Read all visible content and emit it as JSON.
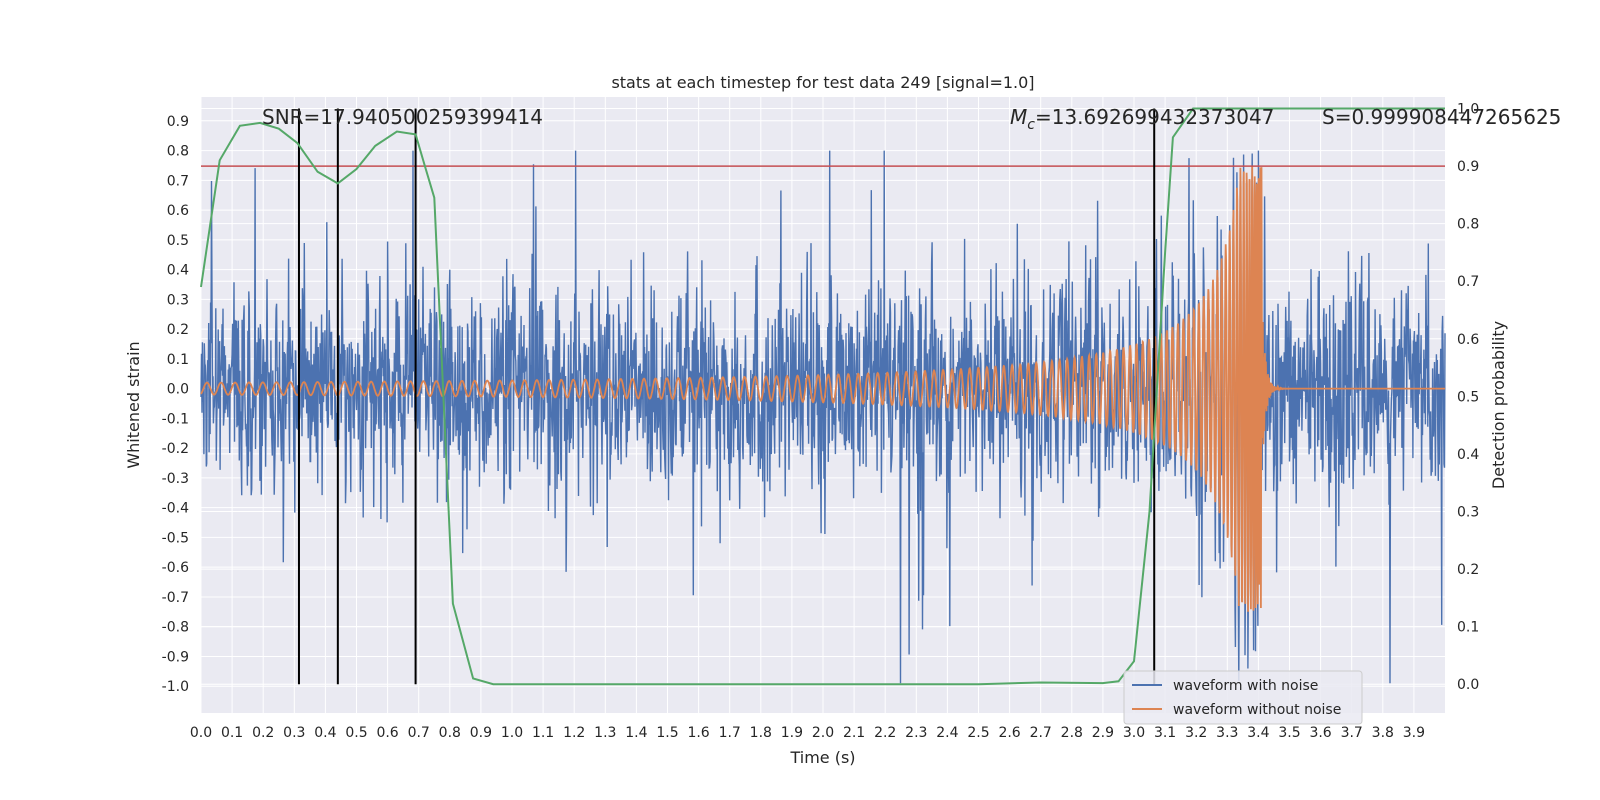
{
  "chart_data": {
    "type": "line",
    "title": "stats at each timestep for test data 249 [signal=1.0]",
    "xlabel": "Time (s)",
    "ylabel_left": "Whitened strain",
    "ylabel_right": "Detection probability",
    "xlim": [
      0.0,
      4.0
    ],
    "ylim_left": [
      -1.09,
      0.98
    ],
    "ylim_right": [
      -0.05,
      1.02
    ],
    "x_ticks": [
      "0.0",
      "0.1",
      "0.2",
      "0.3",
      "0.4",
      "0.5",
      "0.6",
      "0.7",
      "0.8",
      "0.9",
      "1.0",
      "1.1",
      "1.2",
      "1.3",
      "1.4",
      "1.5",
      "1.6",
      "1.7",
      "1.8",
      "1.9",
      "2.0",
      "2.1",
      "2.2",
      "2.3",
      "2.4",
      "2.5",
      "2.6",
      "2.7",
      "2.8",
      "2.9",
      "3.0",
      "3.1",
      "3.2",
      "3.3",
      "3.4",
      "3.5",
      "3.6",
      "3.7",
      "3.8",
      "3.9"
    ],
    "y_ticks_left": [
      "0.9",
      "0.8",
      "0.7",
      "0.6",
      "0.5",
      "0.4",
      "0.3",
      "0.2",
      "0.1",
      "0.0",
      "-0.1",
      "-0.2",
      "-0.3",
      "-0.4",
      "-0.5",
      "-0.6",
      "-0.7",
      "-0.8",
      "-0.9",
      "-1.0"
    ],
    "y_ticks_right": [
      "1.0",
      "0.9",
      "0.8",
      "0.7",
      "0.6",
      "0.5",
      "0.4",
      "0.3",
      "0.2",
      "0.1",
      "0.0"
    ],
    "annotations": {
      "snr_label": "SNR=17.940500259399414",
      "mc_symbol": "M",
      "mc_sub": "c",
      "mc_value": "=13.692699432373047",
      "s_label": "S=0.999908447265625"
    },
    "threshold": {
      "axis": "right",
      "value": 0.9,
      "color": "#c44e52"
    },
    "vertical_markers": [
      0.315,
      0.44,
      0.69,
      3.065
    ],
    "series": [
      {
        "name": "waveform with noise",
        "color": "#4c72b0",
        "axis": "left",
        "description": "whitened noisy strain, approx amplitude 0.25 with peaks to ~0.78 / -0.95"
      },
      {
        "name": "waveform without noise",
        "color": "#dd8452",
        "axis": "left",
        "chirp_start_amplitude": 0.02,
        "merger_time": 3.41,
        "merger_peak": 0.75
      },
      {
        "name": "detection probability",
        "color": "#55a868",
        "axis": "right",
        "x": [
          0.0,
          0.06,
          0.125,
          0.19,
          0.25,
          0.31,
          0.375,
          0.44,
          0.5,
          0.56,
          0.63,
          0.69,
          0.72,
          0.75,
          0.81,
          0.875,
          0.94,
          1.0,
          1.5,
          2.0,
          2.5,
          2.7,
          2.9,
          2.95,
          3.0,
          3.05,
          3.1,
          3.125,
          3.19,
          3.25,
          3.5,
          3.75,
          4.0
        ],
        "y": [
          0.69,
          0.91,
          0.97,
          0.975,
          0.965,
          0.94,
          0.89,
          0.87,
          0.895,
          0.935,
          0.96,
          0.955,
          0.9,
          0.845,
          0.14,
          0.01,
          0.0,
          0.0,
          0.0,
          0.0,
          0.0,
          0.003,
          0.002,
          0.005,
          0.04,
          0.3,
          0.75,
          0.95,
          1.0,
          1.0,
          1.0,
          1.0,
          1.0
        ]
      }
    ],
    "legend": {
      "position": "lower-right",
      "items": [
        "waveform with noise",
        "waveform without noise"
      ]
    }
  }
}
